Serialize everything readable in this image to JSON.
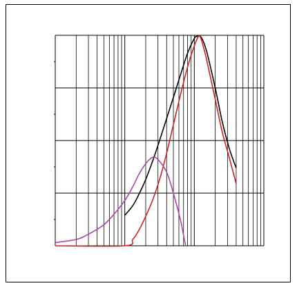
{
  "chart_data": {
    "type": "line",
    "title": "",
    "xlabel": "",
    "ylabel": "",
    "x_scale": "log",
    "xlim": [
      1,
      1000
    ],
    "ylim": [
      0,
      4
    ],
    "grid": true,
    "legend": "none",
    "series": [
      {
        "color": "#000000",
        "points": [
          [
            10,
            0.58
          ],
          [
            13,
            0.76
          ],
          [
            16,
            0.98
          ],
          [
            20,
            1.26
          ],
          [
            25,
            1.6
          ],
          [
            32,
            2.02
          ],
          [
            40,
            2.42
          ],
          [
            50,
            2.82
          ],
          [
            63,
            3.24
          ],
          [
            80,
            3.66
          ],
          [
            100,
            3.94
          ],
          [
            110,
            3.98
          ],
          [
            126,
            3.96
          ],
          [
            150,
            3.7
          ],
          [
            200,
            3.0
          ],
          [
            250,
            2.38
          ],
          [
            320,
            1.84
          ],
          [
            400,
            1.48
          ]
        ]
      },
      {
        "color": "#cc2222",
        "points": [
          [
            1,
            0.0
          ],
          [
            10,
            0.0
          ],
          [
            13,
            0.12
          ],
          [
            16,
            0.3
          ],
          [
            20,
            0.56
          ],
          [
            25,
            0.86
          ],
          [
            32,
            1.28
          ],
          [
            40,
            1.76
          ],
          [
            50,
            2.3
          ],
          [
            63,
            2.86
          ],
          [
            80,
            3.4
          ],
          [
            100,
            3.8
          ],
          [
            115,
            3.98
          ],
          [
            126,
            3.92
          ],
          [
            150,
            3.54
          ],
          [
            200,
            2.78
          ],
          [
            250,
            2.18
          ],
          [
            320,
            1.66
          ],
          [
            400,
            1.18
          ]
        ]
      },
      {
        "color": "#aa44aa",
        "points": [
          [
            1,
            0.06
          ],
          [
            2,
            0.12
          ],
          [
            3,
            0.22
          ],
          [
            5,
            0.4
          ],
          [
            7,
            0.6
          ],
          [
            10,
            0.86
          ],
          [
            13,
            1.12
          ],
          [
            16,
            1.36
          ],
          [
            20,
            1.56
          ],
          [
            25,
            1.68
          ],
          [
            30,
            1.64
          ],
          [
            40,
            1.4
          ],
          [
            50,
            1.0
          ],
          [
            63,
            0.5
          ],
          [
            70,
            0.2
          ],
          [
            75,
            0.0
          ]
        ]
      }
    ]
  }
}
